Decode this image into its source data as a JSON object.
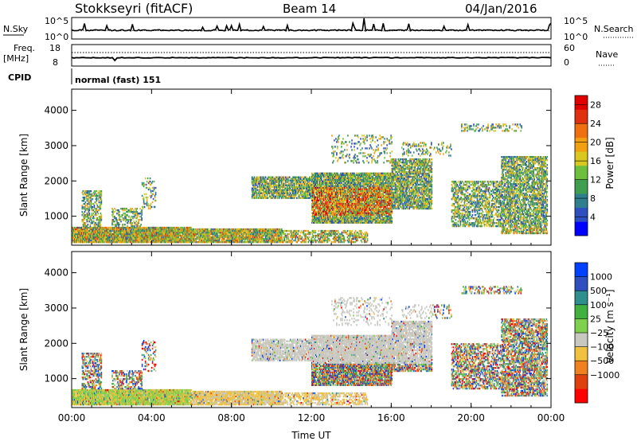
{
  "header": {
    "station": "Stokkseyri (fitACF)",
    "beam": "Beam 14",
    "date": "04/Jan/2016"
  },
  "top_panel": {
    "left_label": "N.Sky",
    "right_label": "N.Search",
    "left_ticks": [
      "10^5",
      "10^0"
    ],
    "right_ticks": [
      "10^5",
      "10^0"
    ]
  },
  "freq_panel": {
    "left_label_line1": "Freq.",
    "left_label_line2": "[MHz]",
    "left_ticks": [
      "18",
      "8"
    ],
    "right_label": "Nave",
    "right_ticks": [
      "60",
      "0"
    ]
  },
  "cpid": {
    "label": "CPID",
    "mode": "normal (fast) 151"
  },
  "colors": {
    "power_scale": [
      "#0000ff",
      "#2f4fc0",
      "#2f7f8f",
      "#3f9f4f",
      "#6fbf3f",
      "#d8c820",
      "#f0a010",
      "#f07010",
      "#e03010",
      "#e00000"
    ],
    "velocity_scale": [
      "#0040ff",
      "#2f4fc0",
      "#2f8f8f",
      "#40b040",
      "#80d050",
      "#c8c8c0",
      "#f0c040",
      "#f08020",
      "#e04010",
      "#ff0000"
    ]
  },
  "chart_data": [
    {
      "type": "heatmap",
      "name": "power",
      "xlabel": "",
      "ylabel": "Slant Range [km]",
      "x_ticks": [
        "00:00",
        "04:00",
        "08:00",
        "12:00",
        "16:00",
        "20:00",
        "00:00"
      ],
      "y_ticks": [
        1000,
        2000,
        3000,
        4000
      ],
      "xlim_hours": [
        0,
        24
      ],
      "ylim_km": [
        180,
        4600
      ],
      "colorbar": {
        "label": "Power [dB]",
        "ticks": [
          4,
          8,
          12,
          16,
          20,
          24,
          28
        ],
        "range": [
          0,
          30
        ]
      }
    },
    {
      "type": "heatmap",
      "name": "velocity",
      "xlabel": "Time UT",
      "ylabel": "Slant Range [km]",
      "x_ticks": [
        "00:00",
        "04:00",
        "08:00",
        "12:00",
        "16:00",
        "20:00",
        "00:00"
      ],
      "y_ticks": [
        1000,
        2000,
        3000,
        4000
      ],
      "xlim_hours": [
        0,
        24
      ],
      "ylim_km": [
        180,
        4600
      ],
      "colorbar": {
        "label": "Velocity [m s⁻¹]",
        "ticks": [
          "1000",
          "500",
          "100",
          "25",
          "−25",
          "−100",
          "−500",
          "−1000"
        ]
      }
    }
  ]
}
